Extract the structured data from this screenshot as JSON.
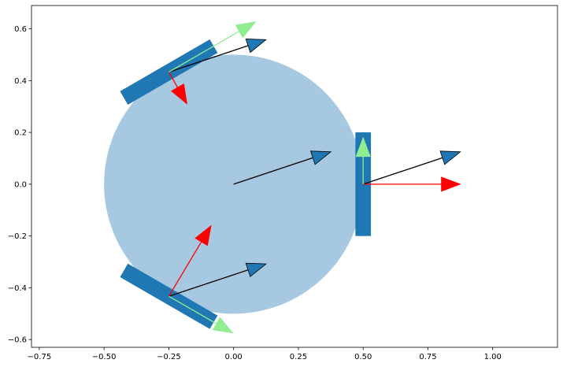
{
  "chart_data": {
    "type": "diagram",
    "title": "",
    "xlabel": "",
    "ylabel": "",
    "xlim": [
      -0.78,
      1.25
    ],
    "ylim": [
      -0.63,
      0.69
    ],
    "x_ticks": [
      {
        "value": -0.75,
        "label": "−0.75"
      },
      {
        "value": -0.5,
        "label": "−0.50"
      },
      {
        "value": -0.25,
        "label": "−0.25"
      },
      {
        "value": 0.0,
        "label": "0.00"
      },
      {
        "value": 0.25,
        "label": "0.25"
      },
      {
        "value": 0.5,
        "label": "0.50"
      },
      {
        "value": 0.75,
        "label": "0.75"
      },
      {
        "value": 1.0,
        "label": "1.00"
      }
    ],
    "y_ticks": [
      {
        "value": 0.6,
        "label": "0.6"
      },
      {
        "value": 0.4,
        "label": "0.4"
      },
      {
        "value": 0.2,
        "label": "0.2"
      },
      {
        "value": 0.0,
        "label": "0.0"
      },
      {
        "value": -0.2,
        "label": "−0.2"
      },
      {
        "value": -0.4,
        "label": "−0.4"
      },
      {
        "value": -0.6,
        "label": "−0.6"
      }
    ],
    "grid": false,
    "colors": {
      "body": "#a6c8e0",
      "wheel": "#1f77b4",
      "velocity_arrow": "#1f77b4",
      "normal_arrow": "#ff0000",
      "tangent_arrow": "#90ee90",
      "arrow_edge": "#000000"
    },
    "body": {
      "center": [
        0.0,
        0.0
      ],
      "radius": 0.5
    },
    "wheels": [
      {
        "name": "wheel-front",
        "center": [
          0.5,
          0.0
        ],
        "angle_deg": 90,
        "length": 0.4,
        "width": 0.06
      },
      {
        "name": "wheel-top-left",
        "center": [
          -0.25,
          0.433
        ],
        "angle_deg": 30,
        "length": 0.4,
        "width": 0.06
      },
      {
        "name": "wheel-bottom-left",
        "center": [
          -0.25,
          -0.433
        ],
        "angle_deg": -30,
        "length": 0.4,
        "width": 0.06
      }
    ],
    "arrows": [
      {
        "name": "center-velocity-arrow",
        "kind": "velocity",
        "start": [
          0.0,
          0.0
        ],
        "end": [
          0.375,
          0.125
        ]
      },
      {
        "name": "front-velocity-arrow",
        "kind": "velocity",
        "start": [
          0.5,
          0.0
        ],
        "end": [
          0.875,
          0.125
        ]
      },
      {
        "name": "front-normal-arrow",
        "kind": "normal",
        "start": [
          0.5,
          0.0
        ],
        "end": [
          0.875,
          0.0
        ]
      },
      {
        "name": "front-tangent-arrow",
        "kind": "tangent",
        "start": [
          0.5,
          0.0
        ],
        "end": [
          0.5,
          0.18
        ]
      },
      {
        "name": "top-left-velocity-arrow",
        "kind": "velocity",
        "start": [
          -0.25,
          0.433
        ],
        "end": [
          0.125,
          0.558
        ]
      },
      {
        "name": "top-left-normal-arrow",
        "kind": "normal",
        "start": [
          -0.25,
          0.433
        ],
        "end": [
          -0.18,
          0.31
        ]
      },
      {
        "name": "top-left-tangent-arrow",
        "kind": "tangent",
        "start": [
          -0.25,
          0.433
        ],
        "end": [
          0.085,
          0.627
        ]
      },
      {
        "name": "bottom-left-velocity-arrow",
        "kind": "velocity",
        "start": [
          -0.25,
          -0.433
        ],
        "end": [
          0.125,
          -0.308
        ]
      },
      {
        "name": "bottom-left-normal-arrow",
        "kind": "normal",
        "start": [
          -0.25,
          -0.433
        ],
        "end": [
          -0.087,
          -0.16
        ]
      },
      {
        "name": "bottom-left-tangent-arrow",
        "kind": "tangent",
        "start": [
          -0.25,
          -0.433
        ],
        "end": [
          -0.003,
          -0.575
        ]
      }
    ]
  }
}
